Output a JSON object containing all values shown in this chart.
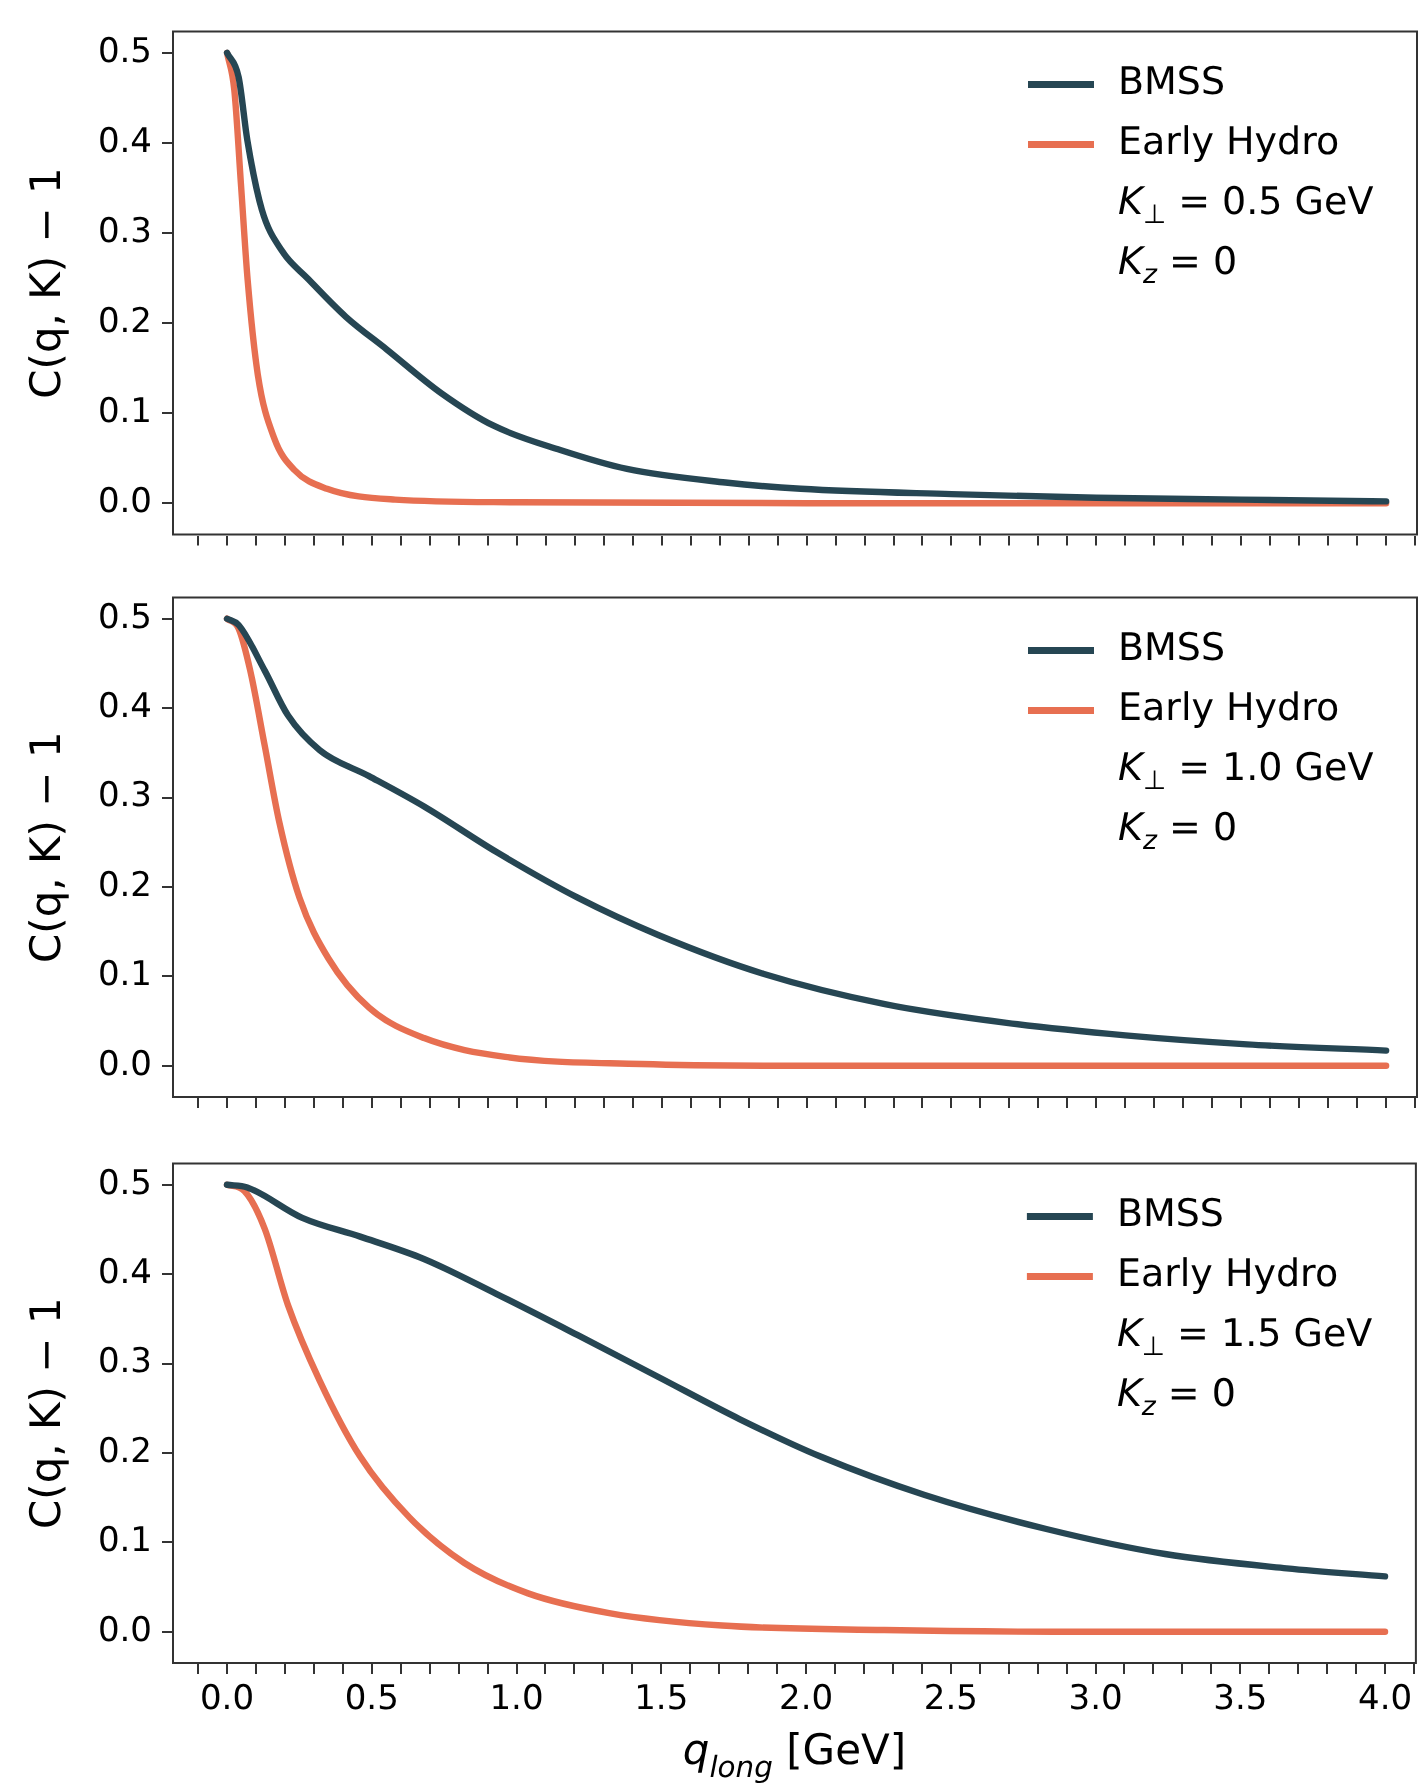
{
  "chart_data": [
    {
      "type": "line",
      "ylabel": "C(q, K) − 1",
      "legend": "top right",
      "grid": false,
      "tick_labels": "y",
      "annotations": [
        "K$_{⊥}$ = 0.5 GeV",
        "K$_{z}$ = 0"
      ],
      "xlim": [
        -0.19,
        4.11
      ],
      "ylim": [
        -0.036,
        0.525
      ],
      "xticks": [
        -0.1,
        0,
        0.1,
        0.2,
        0.3,
        0.4,
        0.5,
        0.6,
        0.7,
        0.8,
        0.9,
        1,
        1.1,
        1.2,
        1.3,
        1.4,
        1.5,
        1.6,
        1.7,
        1.8,
        1.9,
        2,
        2.1,
        2.2,
        2.3,
        2.4,
        2.5,
        2.6,
        2.7,
        2.8,
        2.9,
        3,
        3.1,
        3.2,
        3.3,
        3.4,
        3.5,
        3.6,
        3.7,
        3.8,
        3.9,
        4,
        4.1
      ],
      "yticks": [
        {
          "value": 0,
          "label": "0.0"
        },
        {
          "value": 0.1,
          "label": "0.1"
        },
        {
          "value": 0.2,
          "label": "0.2"
        },
        {
          "value": 0.3,
          "label": "0.3"
        },
        {
          "value": 0.4,
          "label": "0.4"
        },
        {
          "value": 0.5,
          "label": "0.5"
        }
      ],
      "series": [
        {
          "name": "BMSS",
          "color": "#264653",
          "x": [
            0,
            0.04,
            0.07,
            0.12,
            0.19,
            0.28,
            0.41,
            0.55,
            0.74,
            0.92,
            1.15,
            1.38,
            1.72,
            1.98,
            2.5,
            3,
            3.5,
            4
          ],
          "values": [
            0.5,
            0.473,
            0.403,
            0.326,
            0.28,
            0.249,
            0.207,
            0.171,
            0.122,
            0.086,
            0.059,
            0.038,
            0.023,
            0.016,
            0.01,
            0.006,
            0.004,
            0.002
          ]
        },
        {
          "name": "Early Hydro",
          "color": "#e76f51",
          "x": [
            0,
            0.025,
            0.048,
            0.071,
            0.106,
            0.163,
            0.232,
            0.345,
            0.58,
            1,
            2,
            3,
            4
          ],
          "values": [
            0.5,
            0.459,
            0.354,
            0.248,
            0.143,
            0.072,
            0.037,
            0.016,
            0.004,
            0.001,
            0,
            0,
            0
          ]
        }
      ]
    },
    {
      "type": "line",
      "ylabel": "C(q, K) − 1",
      "legend": "top right",
      "grid": false,
      "tick_labels": "y",
      "annotations": [
        "K$_{⊥}$ = 1.0 GeV",
        "K$_{z}$ = 0"
      ],
      "xlim": [
        -0.19,
        4.11
      ],
      "ylim": [
        -0.036,
        0.525
      ],
      "xticks": [
        -0.1,
        0,
        0.1,
        0.2,
        0.3,
        0.4,
        0.5,
        0.6,
        0.7,
        0.8,
        0.9,
        1,
        1.1,
        1.2,
        1.3,
        1.4,
        1.5,
        1.6,
        1.7,
        1.8,
        1.9,
        2,
        2.1,
        2.2,
        2.3,
        2.4,
        2.5,
        2.6,
        2.7,
        2.8,
        2.9,
        3,
        3.1,
        3.2,
        3.3,
        3.4,
        3.5,
        3.6,
        3.7,
        3.8,
        3.9,
        4,
        4.1
      ],
      "yticks": [
        {
          "value": 0,
          "label": "0.0"
        },
        {
          "value": 0.1,
          "label": "0.1"
        },
        {
          "value": 0.2,
          "label": "0.2"
        },
        {
          "value": 0.3,
          "label": "0.3"
        },
        {
          "value": 0.4,
          "label": "0.4"
        },
        {
          "value": 0.5,
          "label": "0.5"
        }
      ],
      "series": [
        {
          "name": "BMSS",
          "color": "#264653",
          "x": [
            0,
            0.04,
            0.13,
            0.21,
            0.32,
            0.49,
            0.68,
            0.93,
            1.21,
            1.49,
            1.85,
            2.27,
            2.69,
            3.1,
            3.52,
            4
          ],
          "values": [
            0.5,
            0.493,
            0.442,
            0.392,
            0.353,
            0.324,
            0.29,
            0.239,
            0.188,
            0.146,
            0.103,
            0.069,
            0.048,
            0.034,
            0.024,
            0.017
          ]
        },
        {
          "name": "Early Hydro",
          "color": "#e76f51",
          "x": [
            0,
            0.04,
            0.08,
            0.13,
            0.18,
            0.25,
            0.35,
            0.49,
            0.68,
            0.96,
            1.43,
            2,
            3,
            4
          ],
          "values": [
            0.5,
            0.489,
            0.442,
            0.358,
            0.273,
            0.188,
            0.12,
            0.065,
            0.031,
            0.01,
            0.002,
            0,
            0,
            0
          ]
        }
      ]
    },
    {
      "type": "line",
      "xlabel": "q$_{long}$ [GeV]",
      "ylabel": "C(q, K) − 1",
      "legend": "top right",
      "grid": false,
      "annotations": [
        "K$_{⊥}$ = 1.5 GeV",
        "K$_{z}$ = 0"
      ],
      "xlim": [
        -0.19,
        4.11
      ],
      "ylim": [
        -0.036,
        0.525
      ],
      "xticks": [
        {
          "value": -0.1,
          "label": null
        },
        {
          "value": 0,
          "label": "0.0"
        },
        {
          "value": 0.1,
          "label": null
        },
        {
          "value": 0.2,
          "label": null
        },
        {
          "value": 0.3,
          "label": null
        },
        {
          "value": 0.4,
          "label": null
        },
        {
          "value": 0.5,
          "label": "0.5"
        },
        {
          "value": 0.6,
          "label": null
        },
        {
          "value": 0.7,
          "label": null
        },
        {
          "value": 0.8,
          "label": null
        },
        {
          "value": 0.9,
          "label": null
        },
        {
          "value": 1,
          "label": "1.0"
        },
        {
          "value": 1.1,
          "label": null
        },
        {
          "value": 1.2,
          "label": null
        },
        {
          "value": 1.3,
          "label": null
        },
        {
          "value": 1.4,
          "label": null
        },
        {
          "value": 1.5,
          "label": "1.5"
        },
        {
          "value": 1.6,
          "label": null
        },
        {
          "value": 1.7,
          "label": null
        },
        {
          "value": 1.8,
          "label": null
        },
        {
          "value": 1.9,
          "label": null
        },
        {
          "value": 2,
          "label": "2.0"
        },
        {
          "value": 2.1,
          "label": null
        },
        {
          "value": 2.2,
          "label": null
        },
        {
          "value": 2.3,
          "label": null
        },
        {
          "value": 2.4,
          "label": null
        },
        {
          "value": 2.5,
          "label": "2.5"
        },
        {
          "value": 2.6,
          "label": null
        },
        {
          "value": 2.7,
          "label": null
        },
        {
          "value": 2.8,
          "label": null
        },
        {
          "value": 2.9,
          "label": null
        },
        {
          "value": 3,
          "label": "3.0"
        },
        {
          "value": 3.1,
          "label": null
        },
        {
          "value": 3.2,
          "label": null
        },
        {
          "value": 3.3,
          "label": null
        },
        {
          "value": 3.4,
          "label": null
        },
        {
          "value": 3.5,
          "label": "3.5"
        },
        {
          "value": 3.6,
          "label": null
        },
        {
          "value": 3.7,
          "label": null
        },
        {
          "value": 3.8,
          "label": null
        },
        {
          "value": 3.9,
          "label": null
        },
        {
          "value": 4,
          "label": "4.0"
        },
        {
          "value": 4.1,
          "label": null
        }
      ],
      "yticks": [
        {
          "value": 0,
          "label": "0.0"
        },
        {
          "value": 0.1,
          "label": "0.1"
        },
        {
          "value": 0.2,
          "label": "0.2"
        },
        {
          "value": 0.3,
          "label": "0.3"
        },
        {
          "value": 0.4,
          "label": "0.4"
        },
        {
          "value": 0.5,
          "label": "0.5"
        }
      ],
      "series": [
        {
          "name": "BMSS",
          "color": "#264653",
          "x": [
            0,
            0.07,
            0.26,
            0.46,
            0.68,
            0.93,
            1.21,
            1.49,
            1.77,
            2.05,
            2.41,
            2.83,
            3.24,
            3.66,
            4
          ],
          "values": [
            0.5,
            0.497,
            0.463,
            0.442,
            0.417,
            0.378,
            0.332,
            0.285,
            0.238,
            0.196,
            0.153,
            0.115,
            0.087,
            0.071,
            0.062
          ]
        },
        {
          "name": "Early Hydro",
          "color": "#e76f51",
          "x": [
            0,
            0.06,
            0.13,
            0.21,
            0.32,
            0.46,
            0.63,
            0.82,
            1.04,
            1.32,
            1.71,
            2.27,
            3,
            4
          ],
          "values": [
            0.5,
            0.493,
            0.451,
            0.366,
            0.281,
            0.196,
            0.128,
            0.077,
            0.043,
            0.021,
            0.007,
            0.002,
            0,
            0
          ]
        }
      ]
    }
  ]
}
